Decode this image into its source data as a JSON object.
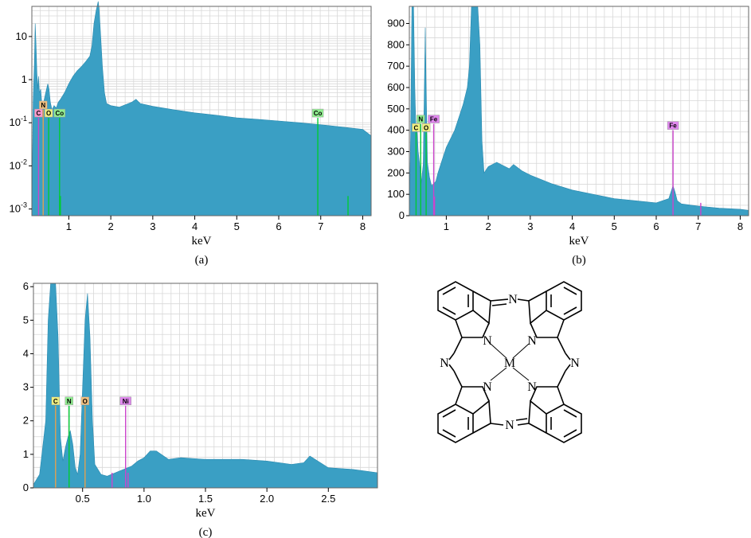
{
  "colors": {
    "spectrum_fill": "#3a9fc4",
    "spectrum_edge": "#2b8aaf",
    "grid": "#d8d8d8",
    "marker_green": "#00cc33",
    "marker_magenta": "#cc44cc",
    "marker_orange": "#e0a050",
    "tag_yellow": "#f0f080",
    "tag_green": "#90ee90",
    "tag_magenta": "#e088ee",
    "tag_pink": "#ff99cc"
  },
  "chart_data": [
    {
      "type": "area",
      "caption": "(a)",
      "xlabel": "keV",
      "ylabel": "",
      "y_scale": "log",
      "xlim": [
        0.12,
        8.2
      ],
      "ylim": [
        0.0007,
        50
      ],
      "x_ticks": [
        "1",
        "2",
        "3",
        "4",
        "5",
        "6",
        "7",
        "8"
      ],
      "x_tick_values": [
        1,
        2,
        3,
        4,
        5,
        6,
        7,
        8
      ],
      "y_ticks": [
        "10",
        "1",
        "10-1",
        "10-2",
        "10-3"
      ],
      "y_tick_values": [
        10,
        1,
        0.1,
        0.01,
        0.001
      ],
      "x": [
        0.12,
        0.15,
        0.18,
        0.2,
        0.22,
        0.24,
        0.26,
        0.28,
        0.3,
        0.33,
        0.36,
        0.4,
        0.45,
        0.5,
        0.53,
        0.56,
        0.6,
        0.65,
        0.7,
        0.75,
        0.8,
        0.9,
        1.0,
        1.1,
        1.2,
        1.3,
        1.4,
        1.5,
        1.55,
        1.6,
        1.65,
        1.7,
        1.72,
        1.75,
        1.8,
        1.85,
        1.9,
        2.0,
        2.2,
        2.5,
        2.6,
        2.7,
        3.0,
        3.5,
        4.0,
        4.5,
        5.0,
        5.5,
        6.0,
        6.5,
        7.0,
        7.5,
        8.0,
        8.2
      ],
      "values": [
        0.0008,
        0.3,
        2.5,
        20,
        6,
        1.5,
        0.6,
        1.2,
        0.5,
        0.6,
        0.25,
        0.3,
        0.5,
        0.8,
        0.6,
        0.3,
        0.2,
        0.25,
        0.22,
        0.3,
        0.35,
        0.5,
        0.8,
        1.2,
        1.6,
        2,
        2.6,
        3.5,
        6,
        20,
        40,
        65,
        45,
        15,
        2,
        0.5,
        0.28,
        0.25,
        0.23,
        0.3,
        0.35,
        0.28,
        0.24,
        0.2,
        0.17,
        0.15,
        0.13,
        0.12,
        0.11,
        0.1,
        0.09,
        0.08,
        0.07,
        0.05
      ],
      "element_lines": [
        {
          "label": "C",
          "x": 0.28,
          "y": 0.13,
          "color": "#cc44cc",
          "tag_color": "#ff99cc"
        },
        {
          "label": "N",
          "x": 0.39,
          "y": 0.2,
          "color": "#e0a050",
          "tag_color": "#f0c080"
        },
        {
          "label": "O",
          "x": 0.52,
          "y": 0.13,
          "color": "#00cc33",
          "tag_color": "#f0f080"
        },
        {
          "label": "Co",
          "x": 0.78,
          "y": 0.13,
          "color": "#00cc33",
          "tag_color": "#90ee90"
        },
        {
          "label": "Co",
          "x": 6.93,
          "y": 0.13,
          "color": "#00cc33",
          "tag_color": "#90ee90"
        }
      ],
      "minor_lines": [
        {
          "x": 7.65,
          "y": 0.002,
          "color": "#00cc33"
        },
        {
          "x": 0.8,
          "y": 0.002,
          "color": "#00cc33"
        }
      ]
    },
    {
      "type": "area",
      "caption": "(b)",
      "xlabel": "keV",
      "ylabel": "",
      "y_scale": "linear",
      "xlim": [
        0.12,
        8.2
      ],
      "ylim": [
        0,
        980
      ],
      "x_ticks": [
        "1",
        "2",
        "3",
        "4",
        "5",
        "6",
        "7",
        "8"
      ],
      "x_tick_values": [
        1,
        2,
        3,
        4,
        5,
        6,
        7,
        8
      ],
      "y_ticks": [
        "0",
        "100",
        "200",
        "300",
        "400",
        "500",
        "600",
        "700",
        "800",
        "900"
      ],
      "y_tick_values": [
        0,
        100,
        200,
        300,
        400,
        500,
        600,
        700,
        800,
        900
      ],
      "x": [
        0.12,
        0.15,
        0.18,
        0.2,
        0.22,
        0.25,
        0.28,
        0.3,
        0.33,
        0.36,
        0.4,
        0.45,
        0.5,
        0.52,
        0.55,
        0.6,
        0.65,
        0.7,
        0.75,
        0.8,
        0.9,
        1.0,
        1.1,
        1.2,
        1.3,
        1.4,
        1.5,
        1.55,
        1.6,
        1.65,
        1.7,
        1.75,
        1.8,
        1.85,
        1.9,
        2.0,
        2.2,
        2.5,
        2.6,
        2.8,
        3.0,
        3.5,
        4.0,
        4.5,
        5.0,
        5.5,
        6.0,
        6.3,
        6.4,
        6.45,
        6.5,
        6.6,
        7.0,
        7.5,
        8.0,
        8.2
      ],
      "values": [
        0,
        380,
        980,
        980,
        980,
        600,
        380,
        420,
        300,
        250,
        150,
        240,
        880,
        600,
        250,
        180,
        140,
        150,
        160,
        200,
        260,
        320,
        360,
        400,
        460,
        520,
        600,
        700,
        980,
        980,
        980,
        980,
        800,
        350,
        200,
        230,
        250,
        220,
        240,
        210,
        190,
        150,
        120,
        100,
        80,
        70,
        60,
        80,
        140,
        110,
        70,
        55,
        45,
        35,
        30,
        25
      ],
      "element_lines": [
        {
          "label": "C",
          "x": 0.28,
          "y": 390,
          "color": "#00cc33",
          "tag_color": "#f0f080"
        },
        {
          "label": "N",
          "x": 0.39,
          "y": 430,
          "color": "#00cc33",
          "tag_color": "#90ee90"
        },
        {
          "label": "O",
          "x": 0.52,
          "y": 390,
          "color": "#00cc33",
          "tag_color": "#f0f080"
        },
        {
          "label": "Fe",
          "x": 0.7,
          "y": 430,
          "color": "#cc44cc",
          "tag_color": "#e088ee"
        },
        {
          "label": "Fe",
          "x": 6.4,
          "y": 400,
          "color": "#cc44cc",
          "tag_color": "#e088ee"
        }
      ],
      "minor_lines": [
        {
          "x": 0.72,
          "y": 90,
          "color": "#cc44cc"
        },
        {
          "x": 7.06,
          "y": 60,
          "color": "#cc44cc"
        }
      ]
    },
    {
      "type": "area",
      "caption": "(c)",
      "xlabel": "keV",
      "ylabel": "",
      "y_scale": "linear",
      "xlim": [
        0.1,
        2.9
      ],
      "ylim": [
        0,
        6.1
      ],
      "x_ticks": [
        "0.5",
        "1.0",
        "1.5",
        "2.0",
        "2.5"
      ],
      "x_tick_values": [
        0.5,
        1.0,
        1.5,
        2.0,
        2.5
      ],
      "y_ticks": [
        "0",
        "1",
        "2",
        "3",
        "4",
        "5",
        "6"
      ],
      "y_tick_values": [
        0,
        1,
        2,
        3,
        4,
        5,
        6
      ],
      "x": [
        0.1,
        0.15,
        0.2,
        0.22,
        0.24,
        0.26,
        0.28,
        0.3,
        0.32,
        0.34,
        0.36,
        0.38,
        0.4,
        0.42,
        0.44,
        0.46,
        0.48,
        0.5,
        0.52,
        0.54,
        0.56,
        0.58,
        0.6,
        0.65,
        0.7,
        0.8,
        0.9,
        0.95,
        1.0,
        1.05,
        1.1,
        1.2,
        1.3,
        1.5,
        1.8,
        2.0,
        2.2,
        2.3,
        2.35,
        2.5,
        2.7,
        2.9
      ],
      "values": [
        0.1,
        0.4,
        2.0,
        5.0,
        6.1,
        6.1,
        6.1,
        4.5,
        1.5,
        0.8,
        1.2,
        1.5,
        1.7,
        1.3,
        0.6,
        0.4,
        1.0,
        3.0,
        5.0,
        5.8,
        4.5,
        2.0,
        0.7,
        0.4,
        0.35,
        0.5,
        0.65,
        0.8,
        0.9,
        1.1,
        1.1,
        0.85,
        0.9,
        0.85,
        0.85,
        0.8,
        0.7,
        0.75,
        0.95,
        0.6,
        0.55,
        0.45
      ],
      "element_lines": [
        {
          "label": "C",
          "x": 0.28,
          "y": 2.45,
          "color": "#e0a050",
          "tag_color": "#f0f080"
        },
        {
          "label": "N",
          "x": 0.39,
          "y": 2.45,
          "color": "#00cc33",
          "tag_color": "#90ee90"
        },
        {
          "label": "O",
          "x": 0.52,
          "y": 2.45,
          "color": "#e0a050",
          "tag_color": "#f0c080"
        },
        {
          "label": "Ni",
          "x": 0.85,
          "y": 2.45,
          "color": "#cc44cc",
          "tag_color": "#e088ee"
        }
      ],
      "minor_lines": [
        {
          "x": 0.74,
          "y": 0.45,
          "color": "#cc44cc"
        },
        {
          "x": 0.87,
          "y": 0.45,
          "color": "#cc44cc"
        }
      ]
    }
  ],
  "structure": {
    "atoms": {
      "center": "M",
      "pyrrole_n": "N",
      "bridge_n": "N"
    }
  }
}
